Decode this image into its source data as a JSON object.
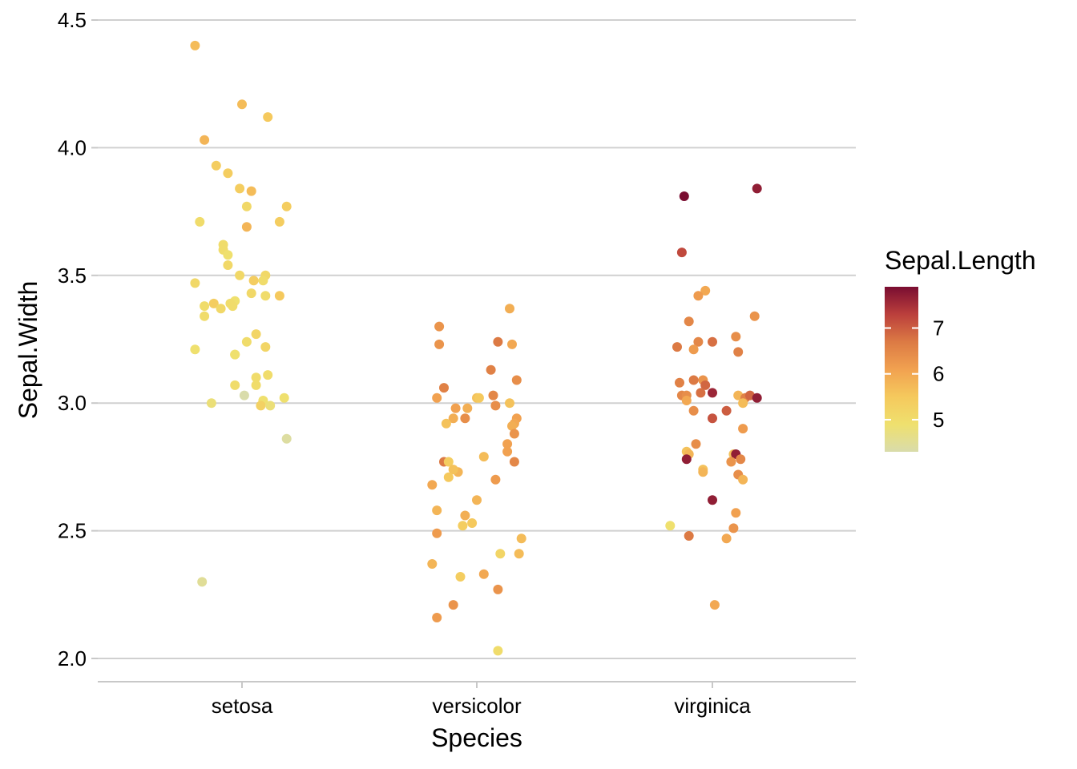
{
  "chart_data": {
    "type": "scatter",
    "title": "",
    "xlabel": "Species",
    "ylabel": "Sepal.Width",
    "categories": [
      "setosa",
      "versicolor",
      "virginica"
    ],
    "ylim": [
      1.91,
      4.59
    ],
    "yticks": [
      2.0,
      2.5,
      3.0,
      3.5,
      4.0,
      4.5
    ],
    "ytick_labels": [
      "2.0",
      "2.5",
      "3.0",
      "3.5",
      "4.0",
      "4.5"
    ],
    "grid": "horizontal major lines only",
    "color_variable": "Sepal.Length",
    "legend": {
      "title": "Sepal.Length",
      "placement": "right",
      "type": "continuous colorbar",
      "range": [
        4.3,
        7.9
      ],
      "ticks": [
        5,
        6,
        7
      ],
      "tick_labels": [
        "5",
        "6",
        "7"
      ],
      "palette": [
        "#d9dcab",
        "#efe06e",
        "#f5c95d",
        "#f1a150",
        "#dc7a44",
        "#bb3f3c",
        "#7a0d31"
      ]
    },
    "points": [
      {
        "species": "setosa",
        "jitter": -0.2,
        "y": 4.4,
        "color": 5.7
      },
      {
        "species": "setosa",
        "jitter": 0.0,
        "y": 4.17,
        "color": 5.7
      },
      {
        "species": "setosa",
        "jitter": 0.11,
        "y": 4.12,
        "color": 5.5
      },
      {
        "species": "setosa",
        "jitter": -0.16,
        "y": 4.03,
        "color": 5.8
      },
      {
        "species": "setosa",
        "jitter": -0.11,
        "y": 3.93,
        "color": 5.4
      },
      {
        "species": "setosa",
        "jitter": -0.06,
        "y": 3.9,
        "color": 5.4
      },
      {
        "species": "setosa",
        "jitter": -0.01,
        "y": 3.84,
        "color": 5.4
      },
      {
        "species": "setosa",
        "jitter": 0.04,
        "y": 3.83,
        "color": 5.7
      },
      {
        "species": "setosa",
        "jitter": 0.02,
        "y": 3.77,
        "color": 5.1
      },
      {
        "species": "setosa",
        "jitter": 0.19,
        "y": 3.77,
        "color": 5.4
      },
      {
        "species": "setosa",
        "jitter": -0.18,
        "y": 3.71,
        "color": 5.0
      },
      {
        "species": "setosa",
        "jitter": 0.16,
        "y": 3.71,
        "color": 5.4
      },
      {
        "species": "setosa",
        "jitter": 0.02,
        "y": 3.69,
        "color": 5.8
      },
      {
        "species": "setosa",
        "jitter": -0.08,
        "y": 3.62,
        "color": 5.0
      },
      {
        "species": "setosa",
        "jitter": -0.08,
        "y": 3.6,
        "color": 5.0
      },
      {
        "species": "setosa",
        "jitter": -0.06,
        "y": 3.58,
        "color": 4.9
      },
      {
        "species": "setosa",
        "jitter": -0.06,
        "y": 3.54,
        "color": 5.1
      },
      {
        "species": "setosa",
        "jitter": -0.01,
        "y": 3.5,
        "color": 5.1
      },
      {
        "species": "setosa",
        "jitter": 0.05,
        "y": 3.48,
        "color": 5.4
      },
      {
        "species": "setosa",
        "jitter": 0.1,
        "y": 3.5,
        "color": 5.1
      },
      {
        "species": "setosa",
        "jitter": 0.09,
        "y": 3.48,
        "color": 5.0
      },
      {
        "species": "setosa",
        "jitter": -0.2,
        "y": 3.47,
        "color": 5.1
      },
      {
        "species": "setosa",
        "jitter": 0.04,
        "y": 3.43,
        "color": 5.1
      },
      {
        "species": "setosa",
        "jitter": 0.1,
        "y": 3.42,
        "color": 5.0
      },
      {
        "species": "setosa",
        "jitter": 0.16,
        "y": 3.42,
        "color": 5.5
      },
      {
        "species": "setosa",
        "jitter": -0.12,
        "y": 3.39,
        "color": 5.4
      },
      {
        "species": "setosa",
        "jitter": -0.03,
        "y": 3.4,
        "color": 4.9
      },
      {
        "species": "setosa",
        "jitter": -0.05,
        "y": 3.39,
        "color": 5.0
      },
      {
        "species": "setosa",
        "jitter": -0.16,
        "y": 3.38,
        "color": 5.0
      },
      {
        "species": "setosa",
        "jitter": -0.09,
        "y": 3.37,
        "color": 5.1
      },
      {
        "species": "setosa",
        "jitter": -0.04,
        "y": 3.38,
        "color": 5.0
      },
      {
        "species": "setosa",
        "jitter": -0.16,
        "y": 3.34,
        "color": 5.0
      },
      {
        "species": "setosa",
        "jitter": 0.06,
        "y": 3.27,
        "color": 5.2
      },
      {
        "species": "setosa",
        "jitter": 0.02,
        "y": 3.24,
        "color": 5.0
      },
      {
        "species": "setosa",
        "jitter": -0.2,
        "y": 3.21,
        "color": 4.9
      },
      {
        "species": "setosa",
        "jitter": 0.1,
        "y": 3.22,
        "color": 5.2
      },
      {
        "species": "setosa",
        "jitter": -0.03,
        "y": 3.19,
        "color": 4.8
      },
      {
        "species": "setosa",
        "jitter": -0.03,
        "y": 3.19,
        "color": 4.9
      },
      {
        "species": "setosa",
        "jitter": 0.06,
        "y": 3.1,
        "color": 5.0
      },
      {
        "species": "setosa",
        "jitter": 0.11,
        "y": 3.11,
        "color": 5.0
      },
      {
        "species": "setosa",
        "jitter": -0.03,
        "y": 3.07,
        "color": 5.0
      },
      {
        "species": "setosa",
        "jitter": 0.06,
        "y": 3.07,
        "color": 5.0
      },
      {
        "species": "setosa",
        "jitter": 0.01,
        "y": 3.03,
        "color": 4.3
      },
      {
        "species": "setosa",
        "jitter": 0.18,
        "y": 3.02,
        "color": 4.9
      },
      {
        "species": "setosa",
        "jitter": 0.09,
        "y": 3.01,
        "color": 4.9
      },
      {
        "species": "setosa",
        "jitter": 0.08,
        "y": 2.99,
        "color": 5.3
      },
      {
        "species": "setosa",
        "jitter": 0.12,
        "y": 2.99,
        "color": 4.8
      },
      {
        "species": "setosa",
        "jitter": -0.13,
        "y": 3.0,
        "color": 4.8
      },
      {
        "species": "setosa",
        "jitter": 0.19,
        "y": 2.86,
        "color": 4.4
      },
      {
        "species": "setosa",
        "jitter": -0.17,
        "y": 2.3,
        "color": 4.5
      },
      {
        "species": "versicolor",
        "jitter": 0.14,
        "y": 3.37,
        "color": 5.9
      },
      {
        "species": "versicolor",
        "jitter": -0.16,
        "y": 3.3,
        "color": 6.3
      },
      {
        "species": "versicolor",
        "jitter": 0.09,
        "y": 3.24,
        "color": 6.7
      },
      {
        "species": "versicolor",
        "jitter": -0.16,
        "y": 3.23,
        "color": 6.3
      },
      {
        "species": "versicolor",
        "jitter": 0.15,
        "y": 3.23,
        "color": 6.0
      },
      {
        "species": "versicolor",
        "jitter": 0.06,
        "y": 3.13,
        "color": 6.6
      },
      {
        "species": "versicolor",
        "jitter": 0.17,
        "y": 3.09,
        "color": 6.4
      },
      {
        "species": "versicolor",
        "jitter": -0.14,
        "y": 3.06,
        "color": 6.6
      },
      {
        "species": "versicolor",
        "jitter": 0.07,
        "y": 3.03,
        "color": 6.5
      },
      {
        "species": "versicolor",
        "jitter": 0.0,
        "y": 3.02,
        "color": 5.6
      },
      {
        "species": "versicolor",
        "jitter": 0.01,
        "y": 3.02,
        "color": 5.5
      },
      {
        "species": "versicolor",
        "jitter": -0.17,
        "y": 3.02,
        "color": 6.1
      },
      {
        "species": "versicolor",
        "jitter": 0.14,
        "y": 3.0,
        "color": 5.6
      },
      {
        "species": "versicolor",
        "jitter": 0.08,
        "y": 2.99,
        "color": 6.4
      },
      {
        "species": "versicolor",
        "jitter": -0.09,
        "y": 2.98,
        "color": 6.1
      },
      {
        "species": "versicolor",
        "jitter": -0.04,
        "y": 2.98,
        "color": 5.9
      },
      {
        "species": "versicolor",
        "jitter": -0.1,
        "y": 2.94,
        "color": 5.9
      },
      {
        "species": "versicolor",
        "jitter": -0.05,
        "y": 2.94,
        "color": 6.4
      },
      {
        "species": "versicolor",
        "jitter": 0.17,
        "y": 2.94,
        "color": 6.1
      },
      {
        "species": "versicolor",
        "jitter": 0.16,
        "y": 2.92,
        "color": 6.0
      },
      {
        "species": "versicolor",
        "jitter": 0.15,
        "y": 2.91,
        "color": 5.9
      },
      {
        "species": "versicolor",
        "jitter": -0.13,
        "y": 2.92,
        "color": 5.6
      },
      {
        "species": "versicolor",
        "jitter": 0.16,
        "y": 2.88,
        "color": 6.3
      },
      {
        "species": "versicolor",
        "jitter": 0.13,
        "y": 2.84,
        "color": 6.1
      },
      {
        "species": "versicolor",
        "jitter": 0.13,
        "y": 2.81,
        "color": 6.1
      },
      {
        "species": "versicolor",
        "jitter": 0.03,
        "y": 2.79,
        "color": 5.7
      },
      {
        "species": "versicolor",
        "jitter": -0.14,
        "y": 2.77,
        "color": 6.7
      },
      {
        "species": "versicolor",
        "jitter": -0.12,
        "y": 2.77,
        "color": 5.4
      },
      {
        "species": "versicolor",
        "jitter": 0.16,
        "y": 2.77,
        "color": 6.5
      },
      {
        "species": "versicolor",
        "jitter": -0.08,
        "y": 2.73,
        "color": 5.8
      },
      {
        "species": "versicolor",
        "jitter": -0.1,
        "y": 2.74,
        "color": 5.6
      },
      {
        "species": "versicolor",
        "jitter": -0.12,
        "y": 2.71,
        "color": 5.5
      },
      {
        "species": "versicolor",
        "jitter": 0.08,
        "y": 2.7,
        "color": 6.2
      },
      {
        "species": "versicolor",
        "jitter": -0.19,
        "y": 2.68,
        "color": 6.0
      },
      {
        "species": "versicolor",
        "jitter": 0.0,
        "y": 2.62,
        "color": 5.8
      },
      {
        "species": "versicolor",
        "jitter": -0.17,
        "y": 2.58,
        "color": 5.8
      },
      {
        "species": "versicolor",
        "jitter": -0.05,
        "y": 2.56,
        "color": 5.9
      },
      {
        "species": "versicolor",
        "jitter": -0.02,
        "y": 2.53,
        "color": 5.5
      },
      {
        "species": "versicolor",
        "jitter": -0.06,
        "y": 2.52,
        "color": 5.4
      },
      {
        "species": "versicolor",
        "jitter": -0.17,
        "y": 2.49,
        "color": 6.2
      },
      {
        "species": "versicolor",
        "jitter": 0.19,
        "y": 2.47,
        "color": 5.7
      },
      {
        "species": "versicolor",
        "jitter": 0.1,
        "y": 2.41,
        "color": 5.2
      },
      {
        "species": "versicolor",
        "jitter": 0.18,
        "y": 2.41,
        "color": 5.7
      },
      {
        "species": "versicolor",
        "jitter": -0.19,
        "y": 2.37,
        "color": 5.8
      },
      {
        "species": "versicolor",
        "jitter": 0.03,
        "y": 2.33,
        "color": 6.0
      },
      {
        "species": "versicolor",
        "jitter": -0.07,
        "y": 2.32,
        "color": 5.4
      },
      {
        "species": "versicolor",
        "jitter": 0.09,
        "y": 2.27,
        "color": 6.3
      },
      {
        "species": "versicolor",
        "jitter": -0.1,
        "y": 2.21,
        "color": 6.3
      },
      {
        "species": "versicolor",
        "jitter": -0.17,
        "y": 2.16,
        "color": 6.2
      },
      {
        "species": "versicolor",
        "jitter": 0.09,
        "y": 2.03,
        "color": 5.0
      },
      {
        "species": "virginica",
        "jitter": -0.12,
        "y": 3.81,
        "color": 7.9
      },
      {
        "species": "virginica",
        "jitter": 0.19,
        "y": 3.84,
        "color": 7.7
      },
      {
        "species": "virginica",
        "jitter": -0.13,
        "y": 3.59,
        "color": 7.2
      },
      {
        "species": "virginica",
        "jitter": -0.03,
        "y": 3.44,
        "color": 6.0
      },
      {
        "species": "virginica",
        "jitter": -0.06,
        "y": 3.42,
        "color": 6.2
      },
      {
        "species": "virginica",
        "jitter": 0.18,
        "y": 3.34,
        "color": 6.3
      },
      {
        "species": "virginica",
        "jitter": -0.1,
        "y": 3.32,
        "color": 6.5
      },
      {
        "species": "virginica",
        "jitter": 0.1,
        "y": 3.26,
        "color": 6.4
      },
      {
        "species": "virginica",
        "jitter": -0.06,
        "y": 3.24,
        "color": 6.5
      },
      {
        "species": "virginica",
        "jitter": 0.0,
        "y": 3.24,
        "color": 6.8
      },
      {
        "species": "virginica",
        "jitter": -0.15,
        "y": 3.22,
        "color": 6.7
      },
      {
        "species": "virginica",
        "jitter": -0.08,
        "y": 3.21,
        "color": 6.2
      },
      {
        "species": "virginica",
        "jitter": 0.11,
        "y": 3.2,
        "color": 6.6
      },
      {
        "species": "virginica",
        "jitter": -0.04,
        "y": 3.09,
        "color": 6.3
      },
      {
        "species": "virginica",
        "jitter": -0.08,
        "y": 3.09,
        "color": 6.7
      },
      {
        "species": "virginica",
        "jitter": -0.14,
        "y": 3.08,
        "color": 6.6
      },
      {
        "species": "virginica",
        "jitter": -0.03,
        "y": 3.07,
        "color": 6.9
      },
      {
        "species": "virginica",
        "jitter": 0.0,
        "y": 3.04,
        "color": 7.6
      },
      {
        "species": "virginica",
        "jitter": -0.13,
        "y": 3.03,
        "color": 6.5
      },
      {
        "species": "virginica",
        "jitter": -0.11,
        "y": 3.03,
        "color": 6.4
      },
      {
        "species": "virginica",
        "jitter": -0.05,
        "y": 3.04,
        "color": 6.8
      },
      {
        "species": "virginica",
        "jitter": 0.11,
        "y": 3.03,
        "color": 5.8
      },
      {
        "species": "virginica",
        "jitter": 0.14,
        "y": 3.02,
        "color": 6.6
      },
      {
        "species": "virginica",
        "jitter": 0.16,
        "y": 3.03,
        "color": 6.9
      },
      {
        "species": "virginica",
        "jitter": 0.19,
        "y": 3.02,
        "color": 7.7
      },
      {
        "species": "virginica",
        "jitter": -0.11,
        "y": 3.01,
        "color": 6.0
      },
      {
        "species": "virginica",
        "jitter": 0.13,
        "y": 3.0,
        "color": 5.7
      },
      {
        "species": "virginica",
        "jitter": -0.08,
        "y": 2.97,
        "color": 6.4
      },
      {
        "species": "virginica",
        "jitter": 0.06,
        "y": 2.97,
        "color": 7.0
      },
      {
        "species": "virginica",
        "jitter": 0.0,
        "y": 2.94,
        "color": 7.1
      },
      {
        "species": "virginica",
        "jitter": 0.13,
        "y": 2.9,
        "color": 6.2
      },
      {
        "species": "virginica",
        "jitter": -0.07,
        "y": 2.84,
        "color": 6.4
      },
      {
        "species": "virginica",
        "jitter": -0.11,
        "y": 2.81,
        "color": 5.6
      },
      {
        "species": "virginica",
        "jitter": -0.1,
        "y": 2.8,
        "color": 5.8
      },
      {
        "species": "virginica",
        "jitter": 0.09,
        "y": 2.8,
        "color": 5.6
      },
      {
        "species": "virginica",
        "jitter": 0.1,
        "y": 2.8,
        "color": 7.7
      },
      {
        "species": "virginica",
        "jitter": 0.12,
        "y": 2.78,
        "color": 6.5
      },
      {
        "species": "virginica",
        "jitter": -0.11,
        "y": 2.78,
        "color": 7.7
      },
      {
        "species": "virginica",
        "jitter": 0.08,
        "y": 2.77,
        "color": 6.3
      },
      {
        "species": "virginica",
        "jitter": -0.04,
        "y": 2.74,
        "color": 5.6
      },
      {
        "species": "virginica",
        "jitter": -0.04,
        "y": 2.73,
        "color": 5.8
      },
      {
        "species": "virginica",
        "jitter": 0.11,
        "y": 2.72,
        "color": 6.4
      },
      {
        "species": "virginica",
        "jitter": 0.13,
        "y": 2.7,
        "color": 5.8
      },
      {
        "species": "virginica",
        "jitter": 0.0,
        "y": 2.62,
        "color": 7.7
      },
      {
        "species": "virginica",
        "jitter": 0.1,
        "y": 2.57,
        "color": 6.1
      },
      {
        "species": "virginica",
        "jitter": -0.18,
        "y": 2.52,
        "color": 4.9
      },
      {
        "species": "virginica",
        "jitter": 0.09,
        "y": 2.51,
        "color": 6.3
      },
      {
        "species": "virginica",
        "jitter": -0.1,
        "y": 2.48,
        "color": 6.7
      },
      {
        "species": "virginica",
        "jitter": 0.06,
        "y": 2.47,
        "color": 6.0
      },
      {
        "species": "virginica",
        "jitter": 0.01,
        "y": 2.21,
        "color": 6.0
      }
    ]
  }
}
